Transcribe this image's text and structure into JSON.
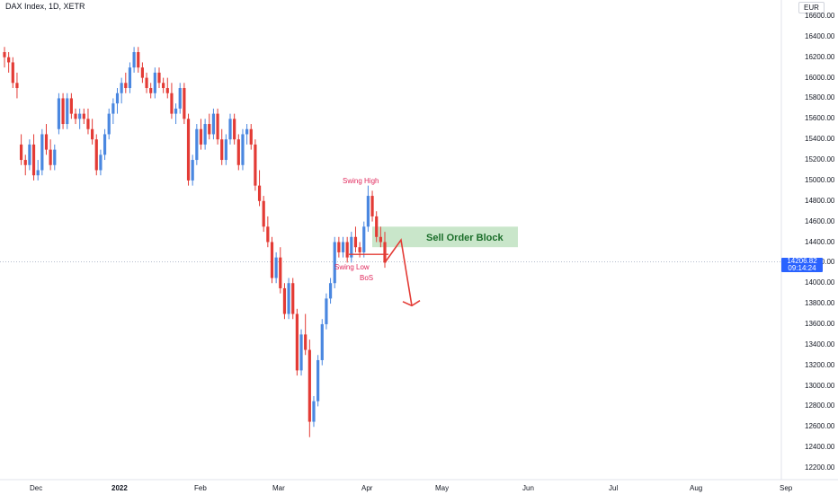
{
  "header": {
    "title": "DAX Index, 1D, XETR",
    "currency": "EUR"
  },
  "last_price": {
    "value": "14206.82",
    "countdown": "09:14:24"
  },
  "annotations": {
    "swing_high": "Swing High",
    "swing_low": "Swing Low",
    "bos": "BoS",
    "order_block": "Sell Order Block"
  },
  "colors": {
    "up": "#4a87e0",
    "down": "#e33b35",
    "annotation": "#e0285c",
    "zone": "#a5d6a7",
    "zone_text": "#1b6e2a"
  },
  "chart_data": {
    "type": "candlestick",
    "title": "DAX Index, 1D, XETR",
    "ylim": [
      12100,
      16800
    ],
    "yticks": [
      12200,
      12400,
      12600,
      12800,
      13000,
      13200,
      13400,
      13600,
      13800,
      14000,
      14200,
      14400,
      14600,
      14800,
      15000,
      15200,
      15400,
      15600,
      15800,
      16000,
      16200,
      16400,
      16600
    ],
    "xticks": [
      "Dec",
      "2022",
      "Feb",
      "Mar",
      "Apr",
      "May",
      "Jun",
      "Jul",
      "Aug",
      "Sep"
    ],
    "currency": "EUR",
    "last_price": 14206.82,
    "candles": [
      [
        16250,
        16300,
        16100,
        16200
      ],
      [
        16200,
        16250,
        16050,
        16150
      ],
      [
        16150,
        16200,
        15900,
        15950
      ],
      [
        15950,
        16050,
        15800,
        15900
      ],
      [
        15350,
        15450,
        15150,
        15200
      ],
      [
        15200,
        15250,
        15050,
        15150
      ],
      [
        15150,
        15400,
        15100,
        15350
      ],
      [
        15350,
        15450,
        15000,
        15050
      ],
      [
        15050,
        15200,
        15000,
        15100
      ],
      [
        15100,
        15500,
        15050,
        15450
      ],
      [
        15450,
        15550,
        15250,
        15300
      ],
      [
        15300,
        15400,
        15100,
        15150
      ],
      [
        15150,
        15350,
        15100,
        15300
      ],
      [
        15500,
        15850,
        15450,
        15800
      ],
      [
        15800,
        15850,
        15500,
        15550
      ],
      [
        15550,
        15850,
        15500,
        15800
      ],
      [
        15800,
        15850,
        15600,
        15650
      ],
      [
        15650,
        15700,
        15550,
        15600
      ],
      [
        15600,
        15700,
        15500,
        15650
      ],
      [
        15650,
        15700,
        15550,
        15600
      ],
      [
        15600,
        15700,
        15450,
        15500
      ],
      [
        15500,
        15600,
        15350,
        15400
      ],
      [
        15400,
        15450,
        15050,
        15100
      ],
      [
        15100,
        15300,
        15050,
        15250
      ],
      [
        15250,
        15500,
        15200,
        15450
      ],
      [
        15450,
        15700,
        15400,
        15650
      ],
      [
        15650,
        15800,
        15550,
        15750
      ],
      [
        15750,
        15900,
        15650,
        15850
      ],
      [
        15850,
        16000,
        15750,
        15950
      ],
      [
        15950,
        16050,
        15850,
        15900
      ],
      [
        15900,
        16150,
        15850,
        16100
      ],
      [
        16100,
        16300,
        16050,
        16250
      ],
      [
        16250,
        16300,
        16050,
        16100
      ],
      [
        16100,
        16150,
        15950,
        16000
      ],
      [
        16000,
        16050,
        15850,
        15900
      ],
      [
        15900,
        15950,
        15800,
        15850
      ],
      [
        15850,
        16100,
        15800,
        16050
      ],
      [
        16050,
        16100,
        15900,
        15950
      ],
      [
        15950,
        16000,
        15850,
        15900
      ],
      [
        15900,
        16000,
        15800,
        15850
      ],
      [
        15850,
        15950,
        15600,
        15650
      ],
      [
        15650,
        15750,
        15550,
        15700
      ],
      [
        15700,
        15950,
        15650,
        15900
      ],
      [
        15900,
        15950,
        15550,
        15600
      ],
      [
        15600,
        15650,
        14950,
        15000
      ],
      [
        15000,
        15250,
        14950,
        15200
      ],
      [
        15200,
        15550,
        15150,
        15500
      ],
      [
        15500,
        15600,
        15300,
        15350
      ],
      [
        15350,
        15600,
        15300,
        15550
      ],
      [
        15550,
        15650,
        15400,
        15450
      ],
      [
        15450,
        15700,
        15400,
        15650
      ],
      [
        15650,
        15700,
        15350,
        15400
      ],
      [
        15400,
        15500,
        15150,
        15200
      ],
      [
        15200,
        15450,
        15150,
        15400
      ],
      [
        15400,
        15650,
        15350,
        15600
      ],
      [
        15600,
        15650,
        15350,
        15400
      ],
      [
        15400,
        15450,
        15100,
        15150
      ],
      [
        15150,
        15500,
        15100,
        15450
      ],
      [
        15450,
        15550,
        15350,
        15500
      ],
      [
        15500,
        15550,
        15300,
        15350
      ],
      [
        15350,
        15400,
        14900,
        14950
      ],
      [
        14950,
        15100,
        14750,
        14800
      ],
      [
        14800,
        14850,
        14500,
        14550
      ],
      [
        14550,
        14650,
        14350,
        14400
      ],
      [
        14400,
        14450,
        14000,
        14050
      ],
      [
        14050,
        14300,
        14000,
        14250
      ],
      [
        14250,
        14350,
        13900,
        13950
      ],
      [
        13950,
        14000,
        13650,
        13700
      ],
      [
        13700,
        14050,
        13650,
        14000
      ],
      [
        14000,
        14050,
        13650,
        13700
      ],
      [
        13700,
        13750,
        13100,
        13150
      ],
      [
        13150,
        13550,
        13100,
        13500
      ],
      [
        13500,
        13700,
        13300,
        13350
      ],
      [
        13350,
        13450,
        12500,
        12650
      ],
      [
        12650,
        12900,
        12600,
        12850
      ],
      [
        12850,
        13300,
        12800,
        13250
      ],
      [
        13250,
        13650,
        13200,
        13600
      ],
      [
        13600,
        13900,
        13550,
        13850
      ],
      [
        13850,
        14050,
        13800,
        14000
      ],
      [
        14000,
        14450,
        13950,
        14400
      ],
      [
        14400,
        14450,
        14250,
        14300
      ],
      [
        14300,
        14450,
        14250,
        14400
      ],
      [
        14400,
        14450,
        14200,
        14250
      ],
      [
        14250,
        14500,
        14200,
        14450
      ],
      [
        14450,
        14550,
        14300,
        14350
      ],
      [
        14350,
        14400,
        14250,
        14300
      ],
      [
        14300,
        14600,
        14250,
        14550
      ],
      [
        14550,
        14950,
        14500,
        14850
      ],
      [
        14850,
        14900,
        14600,
        14650
      ],
      [
        14650,
        14700,
        14400,
        14450
      ],
      [
        14450,
        14550,
        14350,
        14400
      ],
      [
        14400,
        14500,
        14150,
        14200
      ]
    ]
  }
}
